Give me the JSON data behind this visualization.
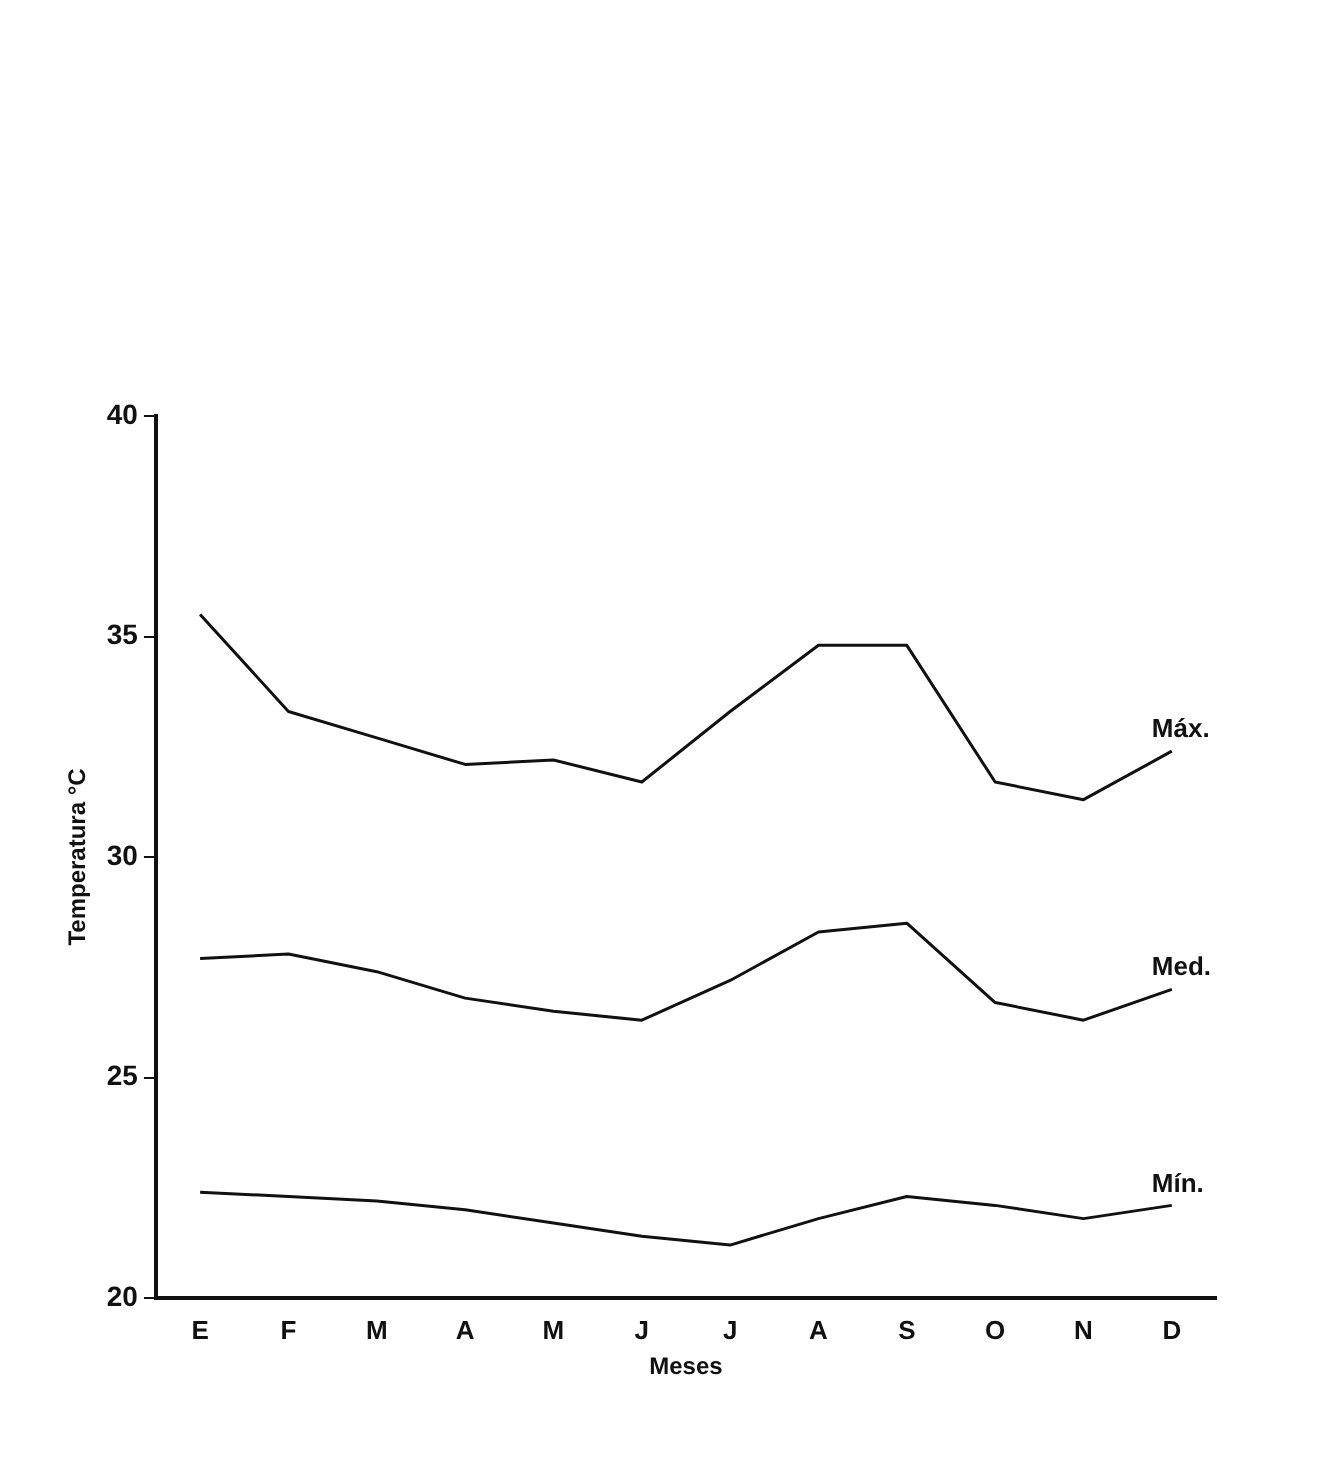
{
  "chart_data": {
    "type": "line",
    "xlabel": "Meses",
    "ylabel": "Temperatura °C",
    "categories": [
      "E",
      "F",
      "M",
      "A",
      "M",
      "J",
      "J",
      "A",
      "S",
      "O",
      "N",
      "D"
    ],
    "series": [
      {
        "name": "Máx.",
        "color": "#111111",
        "values": [
          35.5,
          33.3,
          32.7,
          32.1,
          32.2,
          31.7,
          33.3,
          34.8,
          34.8,
          31.7,
          31.3,
          32.4
        ]
      },
      {
        "name": "Med.",
        "color": "#111111",
        "values": [
          27.7,
          27.8,
          27.4,
          26.8,
          26.5,
          26.3,
          27.2,
          28.3,
          28.5,
          26.7,
          26.3,
          27.0
        ]
      },
      {
        "name": "Mín.",
        "color": "#111111",
        "values": [
          22.4,
          22.3,
          22.2,
          22.0,
          21.7,
          21.4,
          21.2,
          21.8,
          22.3,
          22.1,
          21.8,
          22.1
        ]
      }
    ],
    "ylim": [
      20,
      40
    ],
    "yticks": [
      20,
      25,
      30,
      35,
      40
    ],
    "grid": false,
    "legend": false,
    "marker": "none",
    "line_style": "solid"
  }
}
